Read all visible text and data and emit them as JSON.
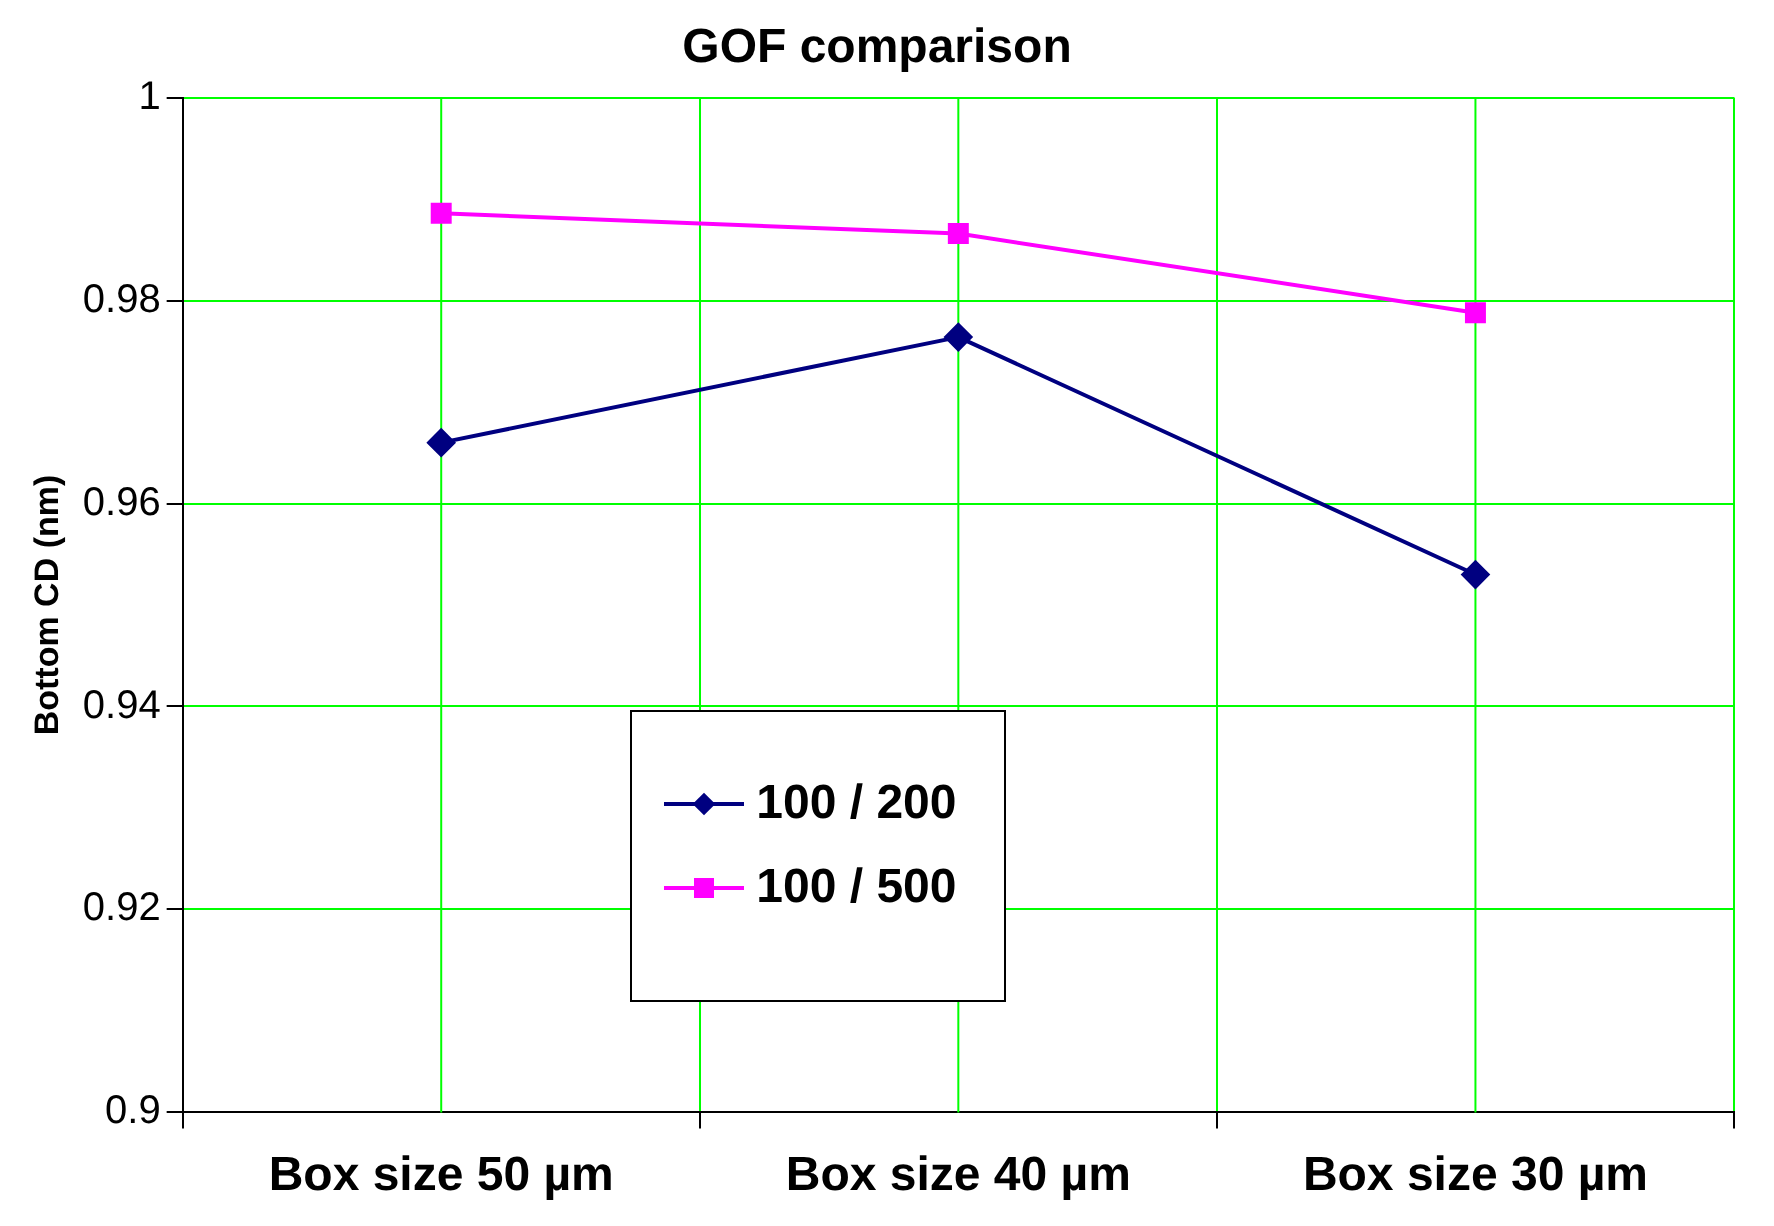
{
  "chart_data": {
    "type": "line",
    "title": "GOF comparison",
    "ylabel": "Bottom CD (nm)",
    "categories": [
      "Box size 50 µm",
      "Box size 40 µm",
      "Box size 30 µm"
    ],
    "series": [
      {
        "name": "100 / 200",
        "color": "#000080",
        "marker": "diamond",
        "values": [
          0.966,
          0.9764,
          0.953
        ]
      },
      {
        "name": "100 / 500",
        "color": "#ff00ff",
        "marker": "square",
        "values": [
          0.9886,
          0.9866,
          0.9788
        ]
      }
    ],
    "ylim": [
      0.9,
      1
    ],
    "yticks": [
      0.9,
      0.92,
      0.94,
      0.96,
      0.98,
      1
    ],
    "grid": true,
    "legend": "bottom"
  }
}
